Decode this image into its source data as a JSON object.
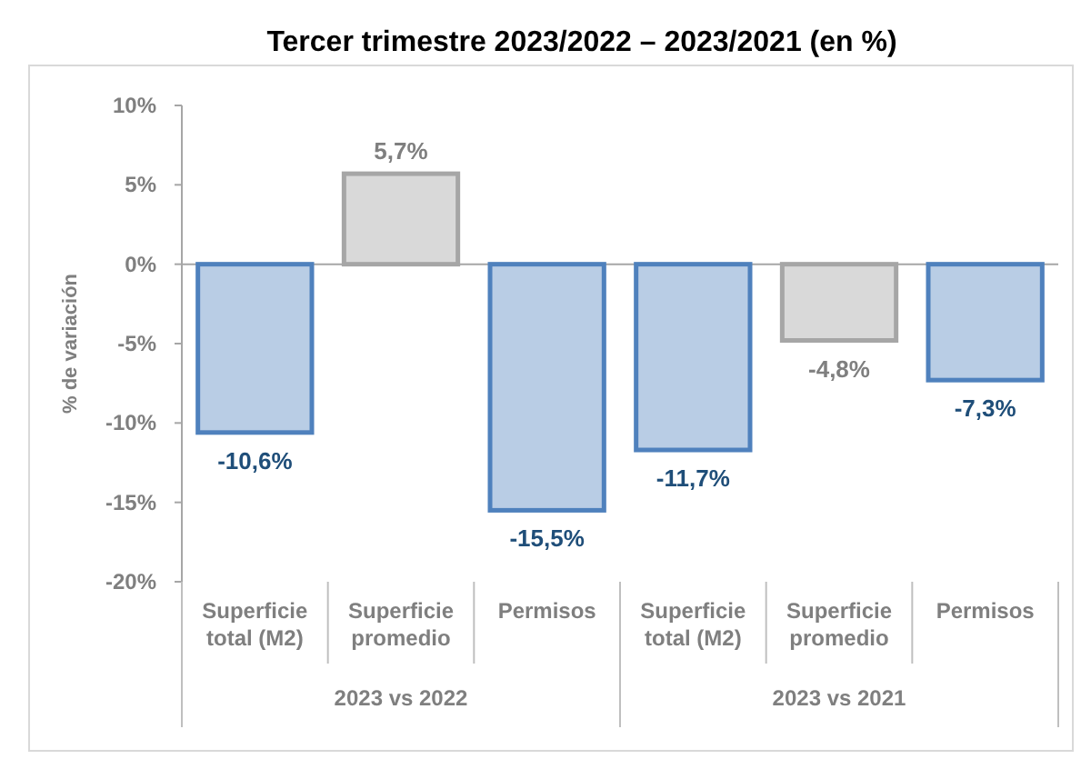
{
  "chart_data": {
    "type": "bar",
    "title": "Tercer trimestre 2023/2022 – 2023/2021 (en %)",
    "ylabel": "% de variación",
    "categories": [
      "Superficie total (M2)",
      "Superficie promedio",
      "Permisos",
      "Superficie total (M2)",
      "Superficie promedio",
      "Permisos"
    ],
    "values": [
      -10.6,
      5.7,
      -15.5,
      -11.7,
      -4.8,
      -7.3
    ],
    "colors": [
      "#b9cde5",
      "#d9d9d9",
      "#b9cde5",
      "#b9cde5",
      "#d9d9d9",
      "#b9cde5"
    ],
    "value_labels": [
      "-10,6%",
      "5,7%",
      "-15,5%",
      "-11,7%",
      "-4,8%",
      "-7,3%"
    ],
    "ylim": [
      -20,
      10
    ],
    "yticks": [
      {
        "value": -20,
        "label": "-20%"
      },
      {
        "value": -15,
        "label": "-15%"
      },
      {
        "value": -10,
        "label": "-10%"
      },
      {
        "value": -5,
        "label": "-5%"
      },
      {
        "value": 0,
        "label": "0%"
      },
      {
        "value": 5,
        "label": "5%"
      },
      {
        "value": 10,
        "label": "10%"
      }
    ],
    "annotations": [
      "2023 vs 2022",
      "2023 vs 2021"
    ]
  }
}
